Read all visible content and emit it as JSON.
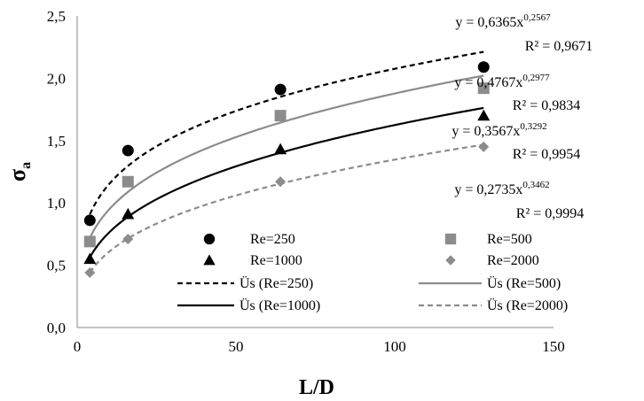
{
  "chart_data": {
    "type": "scatter",
    "xlabel": "L/D",
    "ylabel_main": "σ",
    "ylabel_sub": "a",
    "xlim": [
      0,
      150
    ],
    "ylim": [
      0,
      2.5
    ],
    "x_ticks": [
      0,
      50,
      100,
      150
    ],
    "x_tick_labels": [
      "0",
      "50",
      "100",
      "150"
    ],
    "y_ticks": [
      0,
      0.5,
      1.0,
      1.5,
      2.0,
      2.5
    ],
    "y_tick_labels": [
      "0,0",
      "0,5",
      "1,0",
      "1,5",
      "2,0",
      "2,5"
    ],
    "grid": false,
    "legend_position": "bottom-center",
    "series": [
      {
        "name": "Re=250",
        "marker": "circle",
        "color": "#000000",
        "x": [
          4,
          16,
          64,
          128
        ],
        "y": [
          0.86,
          1.42,
          1.91,
          2.09
        ],
        "fit": {
          "name": "Üs (Re=250)",
          "a": 0.6365,
          "b": 0.2567,
          "style": "dashed",
          "color": "#000000",
          "equation": "y = 0,6365x",
          "exponent": "0,2567",
          "r2": "R² = 0,9671"
        }
      },
      {
        "name": "Re=500",
        "marker": "square",
        "color": "#8c8c8c",
        "x": [
          4,
          16,
          64,
          128
        ],
        "y": [
          0.69,
          1.17,
          1.7,
          1.92
        ],
        "fit": {
          "name": "Üs (Re=500)",
          "a": 0.4767,
          "b": 0.2977,
          "style": "solid",
          "color": "#8c8c8c",
          "equation": "y = 0,4767x",
          "exponent": "0,2977",
          "r2": "R² = 0,9834"
        }
      },
      {
        "name": "Re=1000",
        "marker": "triangle",
        "color": "#000000",
        "x": [
          4,
          16,
          64,
          128
        ],
        "y": [
          0.55,
          0.91,
          1.43,
          1.7
        ],
        "fit": {
          "name": "Üs (Re=1000)",
          "a": 0.3567,
          "b": 0.3292,
          "style": "solid",
          "color": "#000000",
          "equation": "y = 0,3567x",
          "exponent": "0,3292",
          "r2": "R² = 0,9954"
        }
      },
      {
        "name": "Re=2000",
        "marker": "diamond",
        "color": "#8c8c8c",
        "x": [
          4,
          16,
          64,
          128
        ],
        "y": [
          0.44,
          0.71,
          1.17,
          1.45
        ],
        "fit": {
          "name": "Üs (Re=2000)",
          "a": 0.2735,
          "b": 0.3462,
          "style": "dashed",
          "color": "#8c8c8c",
          "equation": "y = 0,2735x",
          "exponent": "0,3462",
          "r2": "R² = 0,9994"
        }
      }
    ]
  }
}
